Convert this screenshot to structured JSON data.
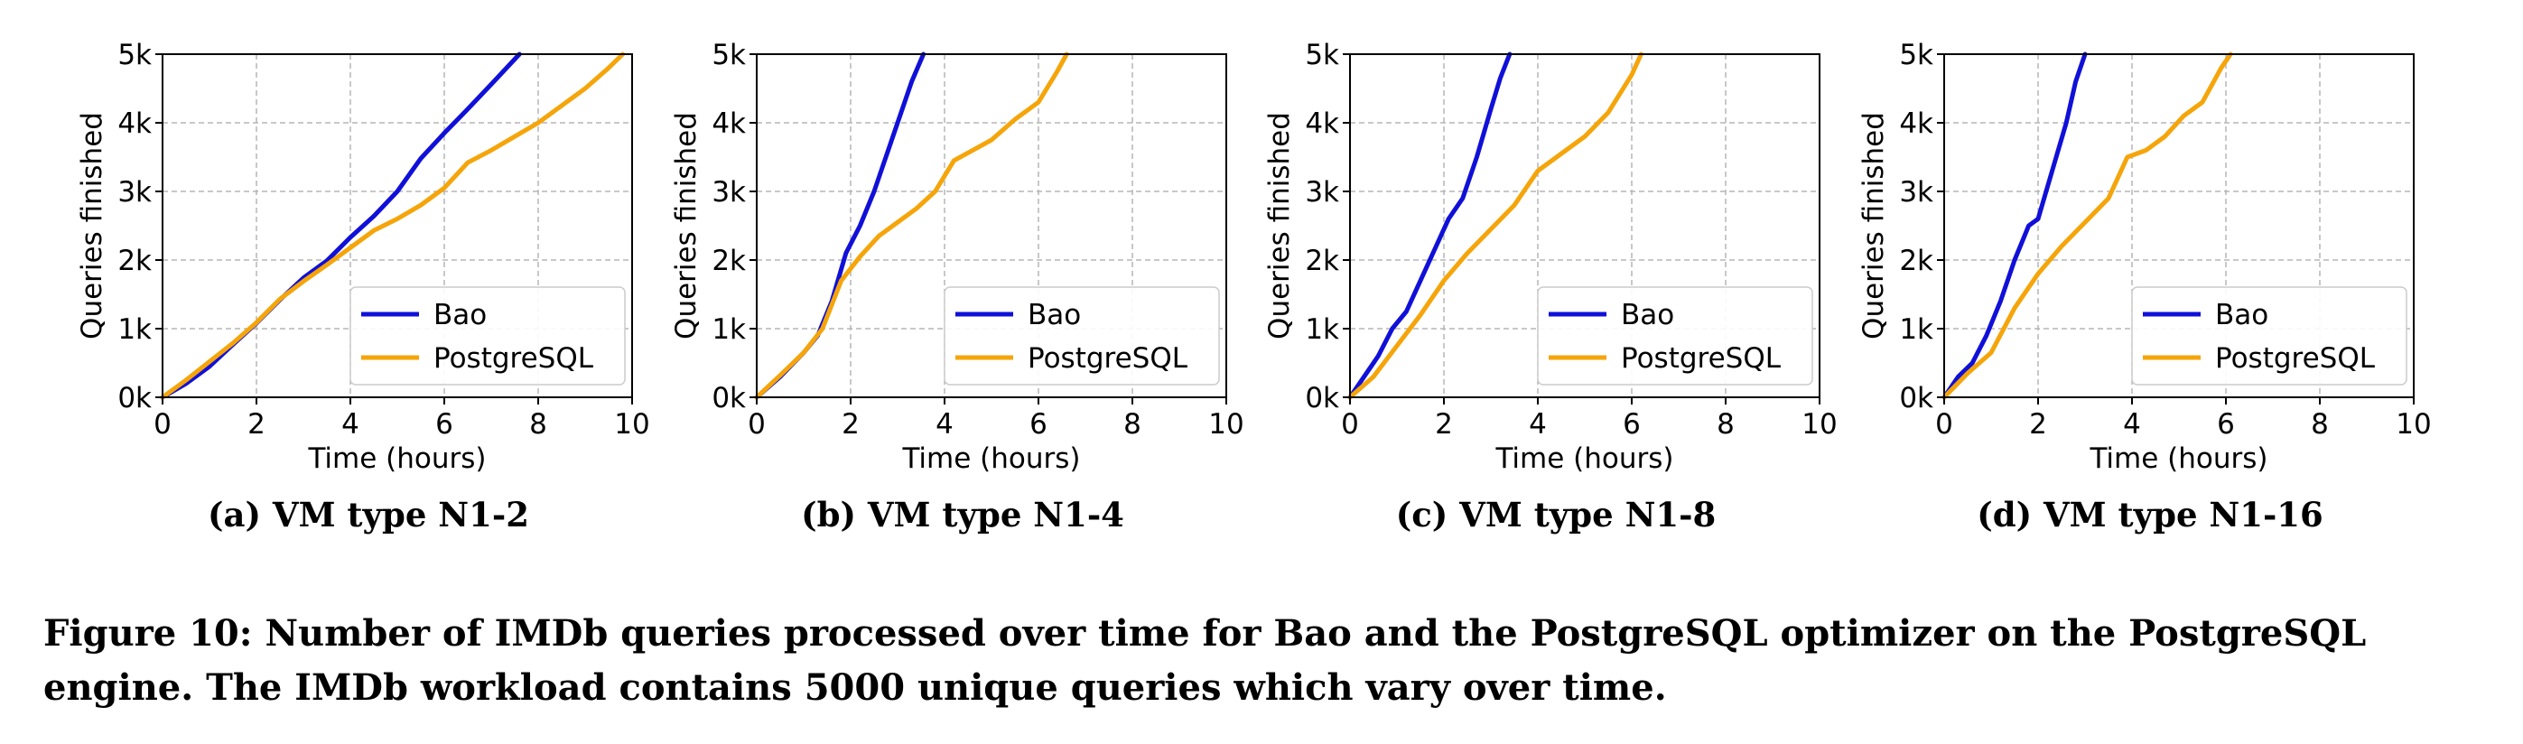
{
  "figure_caption": "Figure 10: Number of IMDb queries processed over time for Bao and the PostgreSQL optimizer on the PostgreSQL engine. The IMDb workload contains 5000 unique queries which vary over time.",
  "colors": {
    "bao": "#1010d8",
    "postgres": "#f5a50a",
    "grid": "#b5b5b5"
  },
  "chart_data": [
    {
      "type": "line",
      "caption": "(a) VM type N1-2",
      "xlabel": "Time (hours)",
      "ylabel": "Queries finished",
      "xlim": [
        0,
        10
      ],
      "ylim": [
        0,
        5000
      ],
      "xticks": [
        0,
        2,
        4,
        6,
        8,
        10
      ],
      "yticks": [
        0,
        1000,
        2000,
        3000,
        4000,
        5000
      ],
      "ytick_labels": [
        "0k",
        "1k",
        "2k",
        "3k",
        "4k",
        "5k"
      ],
      "grid": true,
      "legend": "lower-right",
      "series": [
        {
          "name": "Bao",
          "color": "#1010d8",
          "x": [
            0,
            0.5,
            1.0,
            1.5,
            2.0,
            2.5,
            3.0,
            3.5,
            4.0,
            4.5,
            5.0,
            5.5,
            6.0,
            6.5,
            7.0,
            7.6
          ],
          "y": [
            0,
            200,
            450,
            770,
            1080,
            1420,
            1740,
            1990,
            2330,
            2640,
            3000,
            3480,
            3850,
            4200,
            4560,
            5000
          ]
        },
        {
          "name": "PostgreSQL",
          "color": "#f5a50a",
          "x": [
            0,
            0.5,
            1.0,
            1.5,
            2.0,
            2.5,
            3.0,
            3.5,
            4.0,
            4.5,
            5.0,
            5.5,
            6.0,
            6.5,
            7.0,
            7.5,
            8.0,
            8.5,
            9.0,
            9.5,
            9.8
          ],
          "y": [
            0,
            250,
            520,
            790,
            1090,
            1430,
            1690,
            1930,
            2180,
            2430,
            2600,
            2800,
            3050,
            3420,
            3600,
            3800,
            4000,
            4250,
            4500,
            4800,
            5000
          ]
        }
      ]
    },
    {
      "type": "line",
      "caption": "(b) VM type N1-4",
      "xlabel": "Time (hours)",
      "ylabel": "Queries finished",
      "xlim": [
        0,
        10
      ],
      "ylim": [
        0,
        5000
      ],
      "xticks": [
        0,
        2,
        4,
        6,
        8,
        10
      ],
      "yticks": [
        0,
        1000,
        2000,
        3000,
        4000,
        5000
      ],
      "ytick_labels": [
        "0k",
        "1k",
        "2k",
        "3k",
        "4k",
        "5k"
      ],
      "grid": true,
      "legend": "lower-right",
      "series": [
        {
          "name": "Bao",
          "color": "#1010d8",
          "x": [
            0,
            0.5,
            1.0,
            1.3,
            1.6,
            1.9,
            2.2,
            2.5,
            2.8,
            3.1,
            3.3,
            3.55
          ],
          "y": [
            0,
            300,
            650,
            900,
            1400,
            2100,
            2500,
            3000,
            3600,
            4200,
            4600,
            5000
          ]
        },
        {
          "name": "PostgreSQL",
          "color": "#f5a50a",
          "x": [
            0,
            0.5,
            1.0,
            1.4,
            1.8,
            2.2,
            2.6,
            3.0,
            3.4,
            3.8,
            4.2,
            4.6,
            5.0,
            5.5,
            6.0,
            6.4,
            6.6
          ],
          "y": [
            0,
            320,
            650,
            1000,
            1700,
            2050,
            2350,
            2550,
            2750,
            3000,
            3450,
            3600,
            3750,
            4050,
            4300,
            4750,
            5000
          ]
        }
      ]
    },
    {
      "type": "line",
      "caption": "(c) VM type N1-8",
      "xlabel": "Time (hours)",
      "ylabel": "Queries finished",
      "xlim": [
        0,
        10
      ],
      "ylim": [
        0,
        5000
      ],
      "xticks": [
        0,
        2,
        4,
        6,
        8,
        10
      ],
      "yticks": [
        0,
        1000,
        2000,
        3000,
        4000,
        5000
      ],
      "ytick_labels": [
        "0k",
        "1k",
        "2k",
        "3k",
        "4k",
        "5k"
      ],
      "grid": true,
      "legend": "lower-right",
      "series": [
        {
          "name": "Bao",
          "color": "#1010d8",
          "x": [
            0,
            0.3,
            0.6,
            0.9,
            1.2,
            1.5,
            1.8,
            2.1,
            2.4,
            2.7,
            3.0,
            3.2,
            3.4
          ],
          "y": [
            0,
            300,
            600,
            1000,
            1250,
            1700,
            2150,
            2600,
            2900,
            3500,
            4200,
            4650,
            5000
          ]
        },
        {
          "name": "PostgreSQL",
          "color": "#f5a50a",
          "x": [
            0,
            0.5,
            1.0,
            1.5,
            2.0,
            2.5,
            3.0,
            3.5,
            4.0,
            4.5,
            5.0,
            5.5,
            6.0,
            6.2
          ],
          "y": [
            0,
            300,
            750,
            1200,
            1700,
            2100,
            2450,
            2800,
            3300,
            3550,
            3800,
            4150,
            4700,
            5000
          ]
        }
      ]
    },
    {
      "type": "line",
      "caption": "(d) VM type N1-16",
      "xlabel": "Time (hours)",
      "ylabel": "Queries finished",
      "xlim": [
        0,
        10
      ],
      "ylim": [
        0,
        5000
      ],
      "xticks": [
        0,
        2,
        4,
        6,
        8,
        10
      ],
      "yticks": [
        0,
        1000,
        2000,
        3000,
        4000,
        5000
      ],
      "ytick_labels": [
        "0k",
        "1k",
        "2k",
        "3k",
        "4k",
        "5k"
      ],
      "grid": true,
      "legend": "lower-right",
      "series": [
        {
          "name": "Bao",
          "color": "#1010d8",
          "x": [
            0,
            0.3,
            0.6,
            0.9,
            1.2,
            1.5,
            1.8,
            2.0,
            2.3,
            2.6,
            2.8,
            3.0
          ],
          "y": [
            0,
            300,
            500,
            900,
            1400,
            2000,
            2500,
            2600,
            3300,
            4000,
            4600,
            5000
          ]
        },
        {
          "name": "PostgreSQL",
          "color": "#f5a50a",
          "x": [
            0,
            0.5,
            1.0,
            1.5,
            2.0,
            2.5,
            3.0,
            3.5,
            3.9,
            4.3,
            4.7,
            5.1,
            5.5,
            5.9,
            6.1
          ],
          "y": [
            0,
            350,
            650,
            1300,
            1800,
            2200,
            2550,
            2900,
            3500,
            3600,
            3800,
            4100,
            4300,
            4800,
            5000
          ]
        }
      ]
    }
  ]
}
